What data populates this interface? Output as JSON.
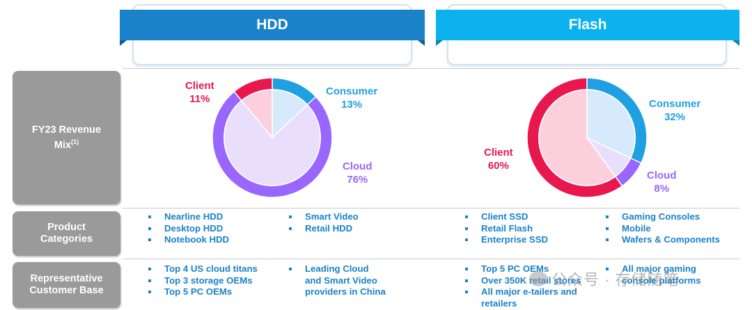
{
  "columns": {
    "hdd": {
      "title": "HDD"
    },
    "flash": {
      "title": "Flash"
    }
  },
  "rows": {
    "revenue": {
      "label_line1": "FY23 Revenue",
      "label_line2": "Mix",
      "label_sup": "(1)"
    },
    "product": {
      "label_line1": "Product",
      "label_line2": "Categories"
    },
    "customer": {
      "label_line1": "Representative",
      "label_line2": "Customer Base"
    }
  },
  "chart_data": [
    {
      "type": "pie",
      "title": "",
      "labels": [
        "Consumer",
        "Cloud",
        "Client"
      ],
      "values": [
        13,
        76,
        11
      ],
      "value_labels": [
        "13%",
        "76%",
        "11%"
      ],
      "colors": {
        "Consumer": "#1fa0e2",
        "Cloud": "#9966ff",
        "Client": "#e8174e"
      }
    },
    {
      "type": "pie",
      "title": "",
      "labels": [
        "Consumer",
        "Cloud",
        "Client"
      ],
      "values": [
        32,
        8,
        60
      ],
      "value_labels": [
        "32%",
        "8%",
        "60%"
      ],
      "colors": {
        "Consumer": "#1fa0e2",
        "Cloud": "#9966ff",
        "Client": "#e8174e"
      }
    }
  ],
  "products": {
    "hdd_col1": [
      "Nearline HDD",
      "Desktop HDD",
      "Notebook HDD"
    ],
    "hdd_col2": [
      "Smart Video",
      "Retail HDD"
    ],
    "flash_col1": [
      "Client SSD",
      "Retail Flash",
      "Enterprise SSD"
    ],
    "flash_col2": [
      "Gaming Consoles",
      "Mobile",
      "Wafers & Components"
    ]
  },
  "customers": {
    "hdd_col1": [
      "Top 4 US cloud titans",
      "Top 3 storage OEMs",
      "Top 5 PC OEMs"
    ],
    "hdd_col2_lines": [
      "Leading Cloud",
      "and Smart Video",
      "providers in China"
    ],
    "flash_col1": [
      "Top 5 PC OEMs",
      "Over 350K retail stores",
      "All major e-tailers and",
      "retailers"
    ],
    "flash_col2": [
      "All major gaming",
      "console platforms"
    ]
  },
  "watermark": {
    "text": "公众号 · 存储随笔"
  }
}
